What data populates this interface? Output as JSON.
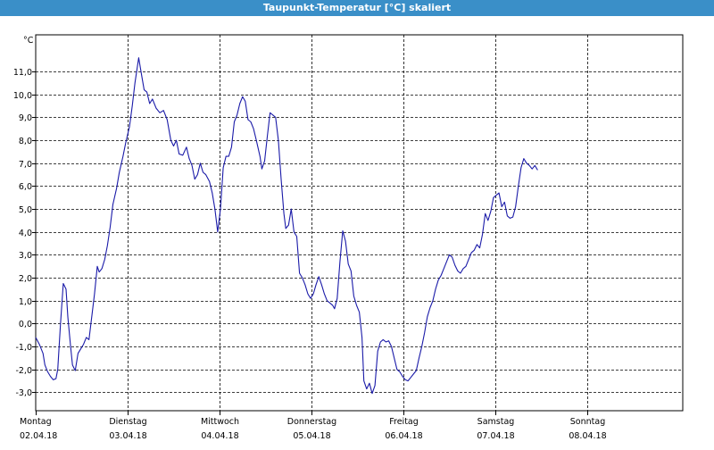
{
  "window": {
    "title": "Taupunkt-Temperatur [°C] skaliert"
  },
  "colors": {
    "title_bar": "#3a8fc8",
    "series": "#1a1aa8",
    "grid": "#000000",
    "background": "#ffffff"
  },
  "chart_data": {
    "type": "line",
    "title": "Taupunkt-Temperatur [°C] skaliert",
    "yunit": "°C",
    "ylim": [
      -3.8,
      12.6
    ],
    "yticks": [
      -3.0,
      -2.0,
      -1.0,
      0.0,
      1.0,
      2.0,
      3.0,
      4.0,
      5.0,
      6.0,
      7.0,
      8.0,
      9.0,
      10.0,
      11.0
    ],
    "ytick_labels": [
      "-3,0",
      "-2,0",
      "-1,0",
      "0,0",
      "1,0",
      "2,0",
      "3,0",
      "4,0",
      "5,0",
      "6,0",
      "7,0",
      "8,0",
      "9,0",
      "10,0",
      "11,0"
    ],
    "xlim": [
      0,
      7.08
    ],
    "x_unit": "days since Monday 02.04.18 00:00",
    "grid": true,
    "x_ticks": [
      {
        "x": 0,
        "day": "Montag",
        "date": "02.04.18"
      },
      {
        "x": 1,
        "day": "Dienstag",
        "date": "03.04.18"
      },
      {
        "x": 2,
        "day": "Mittwoch",
        "date": "04.04.18"
      },
      {
        "x": 3,
        "day": "Donnerstag",
        "date": "05.04.18"
      },
      {
        "x": 4,
        "day": "Freitag",
        "date": "06.04.18"
      },
      {
        "x": 5,
        "day": "Samstag",
        "date": "07.04.18"
      },
      {
        "x": 6,
        "day": "Sonntag",
        "date": "08.04.18"
      }
    ],
    "series": [
      {
        "name": "",
        "points": [
          [
            0.0,
            -0.6
          ],
          [
            0.04,
            -0.9
          ],
          [
            0.08,
            -1.3
          ],
          [
            0.1,
            -1.8
          ],
          [
            0.13,
            -2.1
          ],
          [
            0.16,
            -2.3
          ],
          [
            0.19,
            -2.45
          ],
          [
            0.22,
            -2.4
          ],
          [
            0.24,
            -2.0
          ],
          [
            0.27,
            0.0
          ],
          [
            0.3,
            1.75
          ],
          [
            0.33,
            1.5
          ],
          [
            0.35,
            0.3
          ],
          [
            0.38,
            -1.0
          ],
          [
            0.4,
            -1.8
          ],
          [
            0.43,
            -2.05
          ],
          [
            0.46,
            -1.3
          ],
          [
            0.49,
            -1.1
          ],
          [
            0.52,
            -0.9
          ],
          [
            0.55,
            -0.6
          ],
          [
            0.58,
            -0.7
          ],
          [
            0.61,
            0.3
          ],
          [
            0.64,
            1.3
          ],
          [
            0.67,
            2.5
          ],
          [
            0.69,
            2.25
          ],
          [
            0.72,
            2.4
          ],
          [
            0.75,
            2.8
          ],
          [
            0.78,
            3.4
          ],
          [
            0.81,
            4.2
          ],
          [
            0.84,
            5.2
          ],
          [
            0.88,
            5.9
          ],
          [
            0.91,
            6.6
          ],
          [
            0.95,
            7.3
          ],
          [
            0.98,
            7.9
          ],
          [
            1.02,
            8.6
          ],
          [
            1.05,
            9.5
          ],
          [
            1.08,
            10.5
          ],
          [
            1.12,
            11.6
          ],
          [
            1.15,
            10.9
          ],
          [
            1.18,
            10.2
          ],
          [
            1.21,
            10.1
          ],
          [
            1.24,
            9.6
          ],
          [
            1.27,
            9.8
          ],
          [
            1.31,
            9.4
          ],
          [
            1.35,
            9.2
          ],
          [
            1.39,
            9.3
          ],
          [
            1.43,
            8.9
          ],
          [
            1.47,
            8.0
          ],
          [
            1.5,
            7.75
          ],
          [
            1.53,
            8.0
          ],
          [
            1.56,
            7.4
          ],
          [
            1.6,
            7.35
          ],
          [
            1.64,
            7.7
          ],
          [
            1.67,
            7.2
          ],
          [
            1.7,
            6.9
          ],
          [
            1.73,
            6.3
          ],
          [
            1.76,
            6.5
          ],
          [
            1.79,
            7.0
          ],
          [
            1.82,
            6.6
          ],
          [
            1.85,
            6.5
          ],
          [
            1.89,
            6.2
          ],
          [
            1.92,
            5.7
          ],
          [
            1.95,
            5.0
          ],
          [
            1.98,
            4.0
          ],
          [
            2.01,
            5.0
          ],
          [
            2.04,
            6.8
          ],
          [
            2.07,
            7.3
          ],
          [
            2.1,
            7.3
          ],
          [
            2.13,
            7.7
          ],
          [
            2.16,
            8.8
          ],
          [
            2.19,
            9.1
          ],
          [
            2.22,
            9.6
          ],
          [
            2.25,
            9.9
          ],
          [
            2.28,
            9.7
          ],
          [
            2.31,
            8.9
          ],
          [
            2.34,
            8.8
          ],
          [
            2.37,
            8.5
          ],
          [
            2.4,
            8.0
          ],
          [
            2.44,
            7.3
          ],
          [
            2.46,
            6.75
          ],
          [
            2.49,
            7.1
          ],
          [
            2.52,
            8.2
          ],
          [
            2.55,
            9.2
          ],
          [
            2.58,
            9.1
          ],
          [
            2.61,
            9.0
          ],
          [
            2.64,
            8.0
          ],
          [
            2.67,
            6.3
          ],
          [
            2.7,
            4.8
          ],
          [
            2.72,
            4.15
          ],
          [
            2.75,
            4.3
          ],
          [
            2.78,
            5.0
          ],
          [
            2.81,
            4.0
          ],
          [
            2.84,
            3.8
          ],
          [
            2.87,
            2.2
          ],
          [
            2.9,
            2.0
          ],
          [
            2.93,
            1.7
          ],
          [
            2.96,
            1.3
          ],
          [
            2.99,
            1.1
          ],
          [
            3.02,
            1.3
          ],
          [
            3.05,
            1.7
          ],
          [
            3.08,
            2.05
          ],
          [
            3.11,
            1.7
          ],
          [
            3.14,
            1.3
          ],
          [
            3.17,
            1.0
          ],
          [
            3.2,
            0.9
          ],
          [
            3.23,
            0.8
          ],
          [
            3.25,
            0.65
          ],
          [
            3.28,
            1.1
          ],
          [
            3.31,
            2.7
          ],
          [
            3.34,
            4.05
          ],
          [
            3.37,
            3.6
          ],
          [
            3.4,
            2.6
          ],
          [
            3.43,
            2.3
          ],
          [
            3.46,
            1.2
          ],
          [
            3.49,
            0.8
          ],
          [
            3.52,
            0.5
          ],
          [
            3.55,
            -0.6
          ],
          [
            3.57,
            -2.5
          ],
          [
            3.6,
            -2.85
          ],
          [
            3.63,
            -2.6
          ],
          [
            3.66,
            -3.05
          ],
          [
            3.69,
            -2.7
          ],
          [
            3.72,
            -1.2
          ],
          [
            3.75,
            -0.8
          ],
          [
            3.78,
            -0.7
          ],
          [
            3.81,
            -0.8
          ],
          [
            3.84,
            -0.75
          ],
          [
            3.87,
            -1.0
          ],
          [
            3.9,
            -1.5
          ],
          [
            3.93,
            -2.0
          ],
          [
            3.96,
            -2.1
          ],
          [
            3.99,
            -2.3
          ],
          [
            4.02,
            -2.45
          ],
          [
            4.05,
            -2.5
          ],
          [
            4.08,
            -2.35
          ],
          [
            4.11,
            -2.2
          ],
          [
            4.14,
            -2.05
          ],
          [
            4.17,
            -1.5
          ],
          [
            4.2,
            -1.0
          ],
          [
            4.23,
            -0.4
          ],
          [
            4.26,
            0.3
          ],
          [
            4.29,
            0.7
          ],
          [
            4.32,
            1.0
          ],
          [
            4.35,
            1.5
          ],
          [
            4.38,
            1.9
          ],
          [
            4.41,
            2.1
          ],
          [
            4.44,
            2.4
          ],
          [
            4.47,
            2.7
          ],
          [
            4.5,
            3.0
          ],
          [
            4.53,
            2.9
          ],
          [
            4.56,
            2.55
          ],
          [
            4.59,
            2.3
          ],
          [
            4.62,
            2.2
          ],
          [
            4.65,
            2.4
          ],
          [
            4.68,
            2.5
          ],
          [
            4.71,
            2.8
          ],
          [
            4.74,
            3.1
          ],
          [
            4.77,
            3.2
          ],
          [
            4.8,
            3.45
          ],
          [
            4.83,
            3.3
          ],
          [
            4.86,
            3.9
          ],
          [
            4.89,
            4.8
          ],
          [
            4.92,
            4.5
          ],
          [
            4.95,
            4.9
          ],
          [
            4.98,
            5.5
          ],
          [
            5.01,
            5.6
          ],
          [
            5.04,
            5.7
          ],
          [
            5.07,
            5.1
          ],
          [
            5.1,
            5.3
          ],
          [
            5.13,
            4.7
          ],
          [
            5.16,
            4.6
          ],
          [
            5.19,
            4.65
          ],
          [
            5.22,
            5.1
          ],
          [
            5.25,
            6.0
          ],
          [
            5.28,
            6.8
          ],
          [
            5.31,
            7.2
          ],
          [
            5.34,
            7.0
          ],
          [
            5.37,
            6.9
          ],
          [
            5.4,
            6.75
          ],
          [
            5.43,
            6.9
          ],
          [
            5.46,
            6.7
          ]
        ]
      }
    ]
  }
}
